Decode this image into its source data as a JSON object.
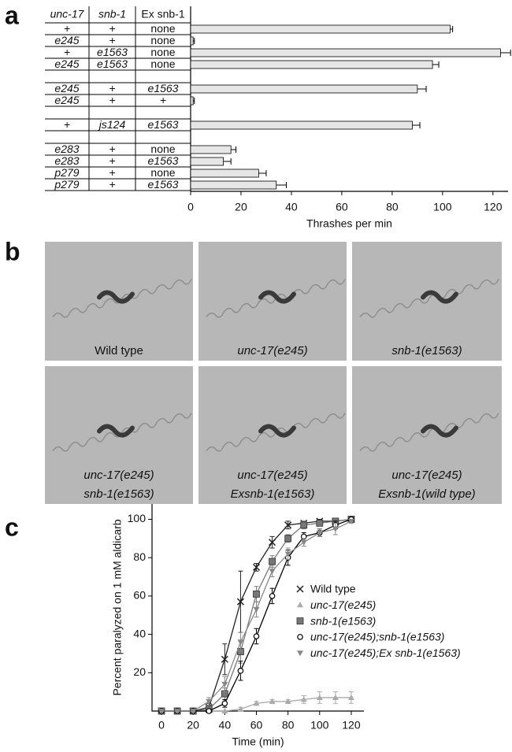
{
  "panel_labels": [
    "a",
    "b",
    "c"
  ],
  "table": {
    "columns": [
      "unc-17",
      "snb-1",
      "Ex snb-1"
    ],
    "groups": [
      [
        [
          "+",
          "+",
          "none"
        ],
        [
          "e245",
          "+",
          "none"
        ],
        [
          "+",
          "e1563",
          "none"
        ],
        [
          "e245",
          "e1563",
          "none"
        ]
      ],
      [
        [
          "e245",
          "+",
          "e1563"
        ],
        [
          "e245",
          "+",
          "+"
        ]
      ],
      [
        [
          "+",
          "js124",
          "e1563"
        ]
      ],
      [
        [
          "e283",
          "+",
          "none"
        ],
        [
          "e283",
          "+",
          "e1563"
        ],
        [
          "p279",
          "+",
          "none"
        ],
        [
          "p279",
          "+",
          "e1563"
        ]
      ]
    ]
  },
  "images": [
    {
      "caption": [
        "Wild type"
      ]
    },
    {
      "caption": [
        "unc-17(e245)"
      ]
    },
    {
      "caption": [
        "snb-1(e1563)"
      ]
    },
    {
      "caption": [
        "unc-17(e245)",
        "snb-1(e1563)"
      ]
    },
    {
      "caption": [
        "unc-17(e245)",
        "Exsnb-1(e1563)"
      ]
    },
    {
      "caption": [
        "unc-17(e245)",
        "Exsnb-1(wild type)"
      ]
    }
  ],
  "chart_data": [
    {
      "type": "hbar",
      "xlabel": "Thrashes per min",
      "color": "#e6e6e6",
      "values": [
        103,
        1,
        123,
        96,
        90,
        1,
        88,
        16,
        13,
        27,
        34
      ],
      "errors": [
        1,
        0.5,
        4,
        2.5,
        3.5,
        0.5,
        3,
        2,
        3,
        3,
        4
      ],
      "xlim": [
        0,
        126
      ],
      "xticks": [
        0,
        20,
        40,
        60,
        80,
        100,
        120
      ]
    },
    {
      "type": "line",
      "xlabel": "Time (min)",
      "ylabel": "Percent paralyzed on 1 mM aldicarb",
      "x": [
        0,
        10,
        20,
        30,
        40,
        50,
        60,
        70,
        80,
        90,
        100,
        110,
        120
      ],
      "xlim": [
        -6,
        128
      ],
      "xticks": [
        0,
        20,
        40,
        60,
        80,
        100,
        120
      ],
      "ylim": [
        0,
        108
      ],
      "yticks": [
        20,
        40,
        60,
        80,
        100
      ],
      "series": [
        {
          "name": "Wild type",
          "color": "#222222",
          "values": [
            0,
            0,
            0,
            2,
            27,
            57,
            75,
            88,
            97,
            98,
            99,
            99,
            100
          ],
          "errors": [
            0,
            0,
            0,
            2,
            8,
            16,
            2,
            3,
            2,
            1,
            1,
            1,
            0
          ]
        },
        {
          "name": "unc-17(e245)",
          "color": "#aaaaaa",
          "values": [
            0,
            0,
            0,
            0,
            0,
            1,
            4,
            5,
            5,
            6,
            7,
            7,
            7
          ],
          "errors": [
            0,
            0,
            0,
            0,
            0,
            1,
            1,
            1,
            1,
            2,
            3,
            3,
            3
          ]
        },
        {
          "name": "snb-1(e1563)",
          "color": "#777777",
          "values": [
            0,
            0,
            0,
            1,
            9,
            31,
            61,
            78,
            90,
            97,
            98,
            99,
            100
          ],
          "errors": [
            0,
            0,
            0,
            1,
            3,
            6,
            4,
            3,
            2,
            2,
            1,
            1,
            0
          ]
        },
        {
          "name": "unc-17(e245);snb-1(e1563)",
          "color": "#000000",
          "values": [
            0,
            0,
            0,
            0,
            4,
            21,
            39,
            60,
            80,
            91,
            93,
            97,
            100
          ],
          "errors": [
            0,
            0,
            0,
            0,
            2,
            5,
            4,
            4,
            4,
            2,
            2,
            2,
            0
          ]
        },
        {
          "name": "unc-17(e245);Ex snb-1(e1563)",
          "color": "#888888",
          "values": [
            0,
            0,
            0,
            5,
            14,
            36,
            53,
            73,
            82,
            88,
            93,
            95,
            99
          ],
          "errors": [
            0,
            0,
            0,
            2,
            4,
            5,
            4,
            3,
            3,
            2,
            2,
            3,
            1
          ]
        }
      ]
    }
  ]
}
